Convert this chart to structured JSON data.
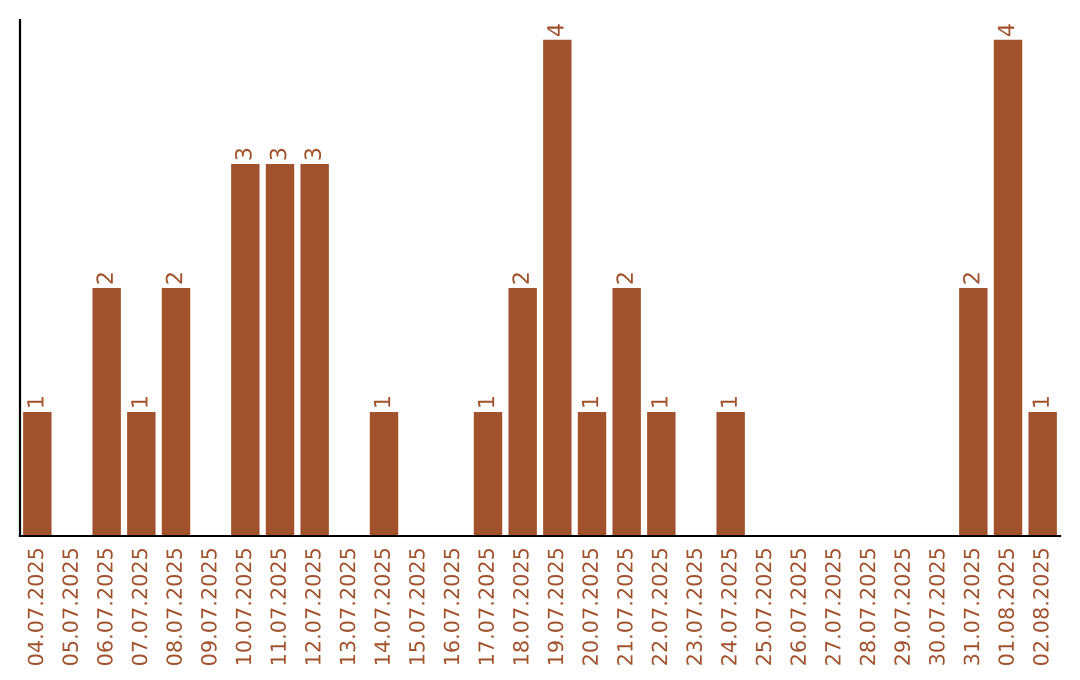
{
  "chart_data": {
    "type": "bar",
    "categories": [
      "04.07.2025",
      "05.07.2025",
      "06.07.2025",
      "07.07.2025",
      "08.07.2025",
      "09.07.2025",
      "10.07.2025",
      "11.07.2025",
      "12.07.2025",
      "13.07.2025",
      "14.07.2025",
      "15.07.2025",
      "16.07.2025",
      "17.07.2025",
      "18.07.2025",
      "19.07.2025",
      "20.07.2025",
      "21.07.2025",
      "22.07.2025",
      "23.07.2025",
      "24.07.2025",
      "25.07.2025",
      "26.07.2025",
      "27.07.2025",
      "28.07.2025",
      "29.07.2025",
      "30.07.2025",
      "31.07.2025",
      "01.08.2025",
      "02.08.2025"
    ],
    "values": [
      1,
      0,
      2,
      1,
      2,
      0,
      3,
      3,
      3,
      0,
      1,
      0,
      0,
      1,
      2,
      4,
      1,
      2,
      1,
      0,
      1,
      0,
      0,
      0,
      0,
      0,
      0,
      2,
      4,
      1
    ],
    "value_labels": [
      "1",
      null,
      "2",
      "1",
      "2",
      null,
      "3",
      "3",
      "3",
      null,
      "1",
      null,
      null,
      "1",
      "2",
      "4",
      "1",
      "2",
      "1",
      null,
      "1",
      null,
      null,
      null,
      null,
      null,
      null,
      "2",
      "4",
      "1"
    ],
    "color": "#a0522d",
    "tick_labels": "x",
    "grid": false
  }
}
